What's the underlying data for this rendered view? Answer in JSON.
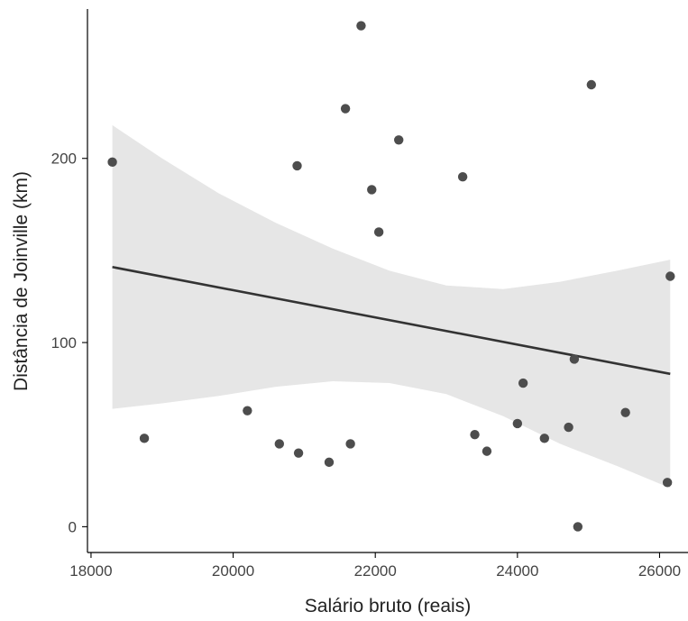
{
  "chart_data": {
    "type": "scatter",
    "title": "",
    "xlabel": "Salário bruto (reais)",
    "ylabel": "Distância de Joinville (km)",
    "xlim": [
      17950,
      26400
    ],
    "ylim": [
      -14,
      286
    ],
    "x_ticks": [
      18000,
      20000,
      22000,
      24000,
      26000
    ],
    "x_tick_labels": [
      "18000",
      "20000",
      "22000",
      "24000",
      "26000"
    ],
    "y_ticks": [
      0,
      100,
      200
    ],
    "y_tick_labels": [
      "0",
      "100",
      "200"
    ],
    "grid": false,
    "point_color": "#4d4d4d",
    "line_color": "#333333",
    "band_color": "#e6e6e6",
    "points": [
      {
        "x": 18300,
        "y": 198
      },
      {
        "x": 18750,
        "y": 48
      },
      {
        "x": 20200,
        "y": 63
      },
      {
        "x": 20650,
        "y": 45
      },
      {
        "x": 20900,
        "y": 196
      },
      {
        "x": 20920,
        "y": 40
      },
      {
        "x": 21350,
        "y": 35
      },
      {
        "x": 21580,
        "y": 227
      },
      {
        "x": 21650,
        "y": 45
      },
      {
        "x": 21800,
        "y": 272
      },
      {
        "x": 21950,
        "y": 183
      },
      {
        "x": 22050,
        "y": 160
      },
      {
        "x": 22330,
        "y": 210
      },
      {
        "x": 23230,
        "y": 190
      },
      {
        "x": 23400,
        "y": 50
      },
      {
        "x": 23570,
        "y": 41
      },
      {
        "x": 24000,
        "y": 56
      },
      {
        "x": 24080,
        "y": 78
      },
      {
        "x": 24380,
        "y": 48
      },
      {
        "x": 24720,
        "y": 54
      },
      {
        "x": 24800,
        "y": 91
      },
      {
        "x": 24850,
        "y": 0
      },
      {
        "x": 25040,
        "y": 240
      },
      {
        "x": 25520,
        "y": 62
      },
      {
        "x": 26110,
        "y": 24
      },
      {
        "x": 26150,
        "y": 136
      }
    ],
    "fit_line": [
      {
        "x": 18300,
        "y": 141
      },
      {
        "x": 26150,
        "y": 83
      }
    ],
    "confidence_band": {
      "x": [
        18300,
        19000,
        19800,
        20600,
        21400,
        22200,
        23000,
        23800,
        24600,
        25400,
        26150
      ],
      "upper": [
        218,
        200,
        181,
        165,
        151,
        139,
        131,
        129,
        133,
        139,
        145
      ],
      "lower": [
        64,
        67,
        71,
        76,
        79,
        78,
        72,
        60,
        45,
        33,
        21
      ]
    }
  }
}
